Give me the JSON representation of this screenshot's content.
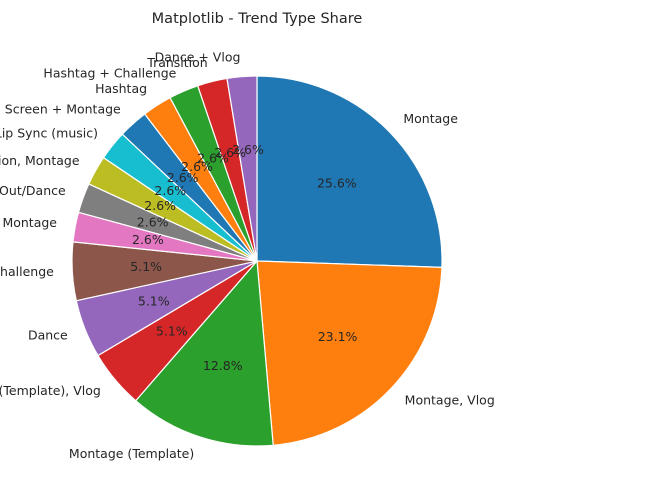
{
  "chart_data": {
    "type": "pie",
    "title": "Matplotlib - Trend Type Share",
    "start_angle_deg": 90,
    "direction": "clockwise",
    "slices": [
      {
        "label": "Montage",
        "value": 25.6,
        "pct_text": "25.6%",
        "color": "#1f77b4"
      },
      {
        "label": "Montage, Vlog",
        "value": 23.1,
        "pct_text": "23.1%",
        "color": "#ff7f0e"
      },
      {
        "label": "Montage (Template)",
        "value": 12.8,
        "pct_text": "12.8%",
        "color": "#2ca02c"
      },
      {
        "label": "Montage (Template), Vlog",
        "value": 5.1,
        "pct_text": "5.1%",
        "color": "#d62728"
      },
      {
        "label": "Dance",
        "value": 5.1,
        "pct_text": "5.1%",
        "color": "#9467bd"
      },
      {
        "label": "Dance + Challenge",
        "value": 5.1,
        "pct_text": "5.1%",
        "color": "#8c564b"
      },
      {
        "label": "Cosplay, Montage",
        "value": 2.6,
        "pct_text": "2.6%",
        "color": "#e377c2"
      },
      {
        "label": "Vlog, Act Out/Dance",
        "value": 2.6,
        "pct_text": "2.6%",
        "color": "#7f7f7f"
      },
      {
        "label": "Transition, Montage",
        "value": 2.6,
        "pct_text": "2.6%",
        "color": "#bcbd22"
      },
      {
        "label": "Lip Sync (music)",
        "value": 2.6,
        "pct_text": "2.6%",
        "color": "#17becf"
      },
      {
        "label": "Act Out + Text on Screen + Montage",
        "value": 2.6,
        "pct_text": "2.6%",
        "color": "#1f77b4"
      },
      {
        "label": "Hashtag",
        "value": 2.6,
        "pct_text": "2.6%",
        "color": "#ff7f0e"
      },
      {
        "label": "Hashtag + Challenge",
        "value": 2.6,
        "pct_text": "2.6%",
        "color": "#2ca02c"
      },
      {
        "label": "Transition",
        "value": 2.6,
        "pct_text": "2.6%",
        "color": "#d62728"
      },
      {
        "label": "Dance + Vlog",
        "value": 2.6,
        "pct_text": "2.6%",
        "color": "#9467bd"
      }
    ]
  }
}
